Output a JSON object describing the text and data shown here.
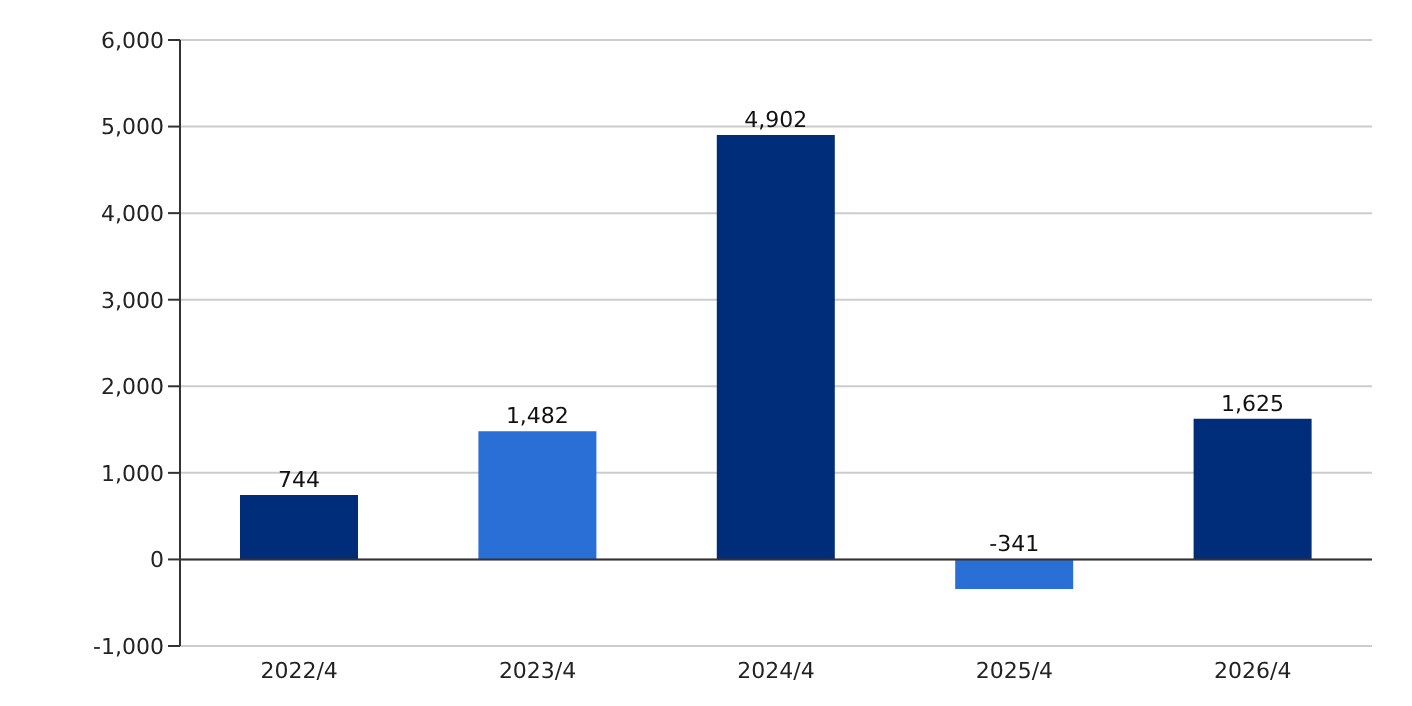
{
  "chart_data": {
    "type": "bar",
    "categories": [
      "2022/4",
      "2023/4",
      "2024/4",
      "2025/4",
      "2026/4"
    ],
    "values": [
      744,
      1482,
      4902,
      -341,
      1625
    ],
    "value_labels": [
      "744",
      "1,482",
      "4,902",
      "-341",
      "1,625"
    ],
    "colors": [
      "#002d7a",
      "#2a6fd6",
      "#002d7a",
      "#2a6fd6",
      "#002d7a"
    ],
    "ylim": [
      -1000,
      6000
    ],
    "yticks": [
      {
        "value": -1000,
        "label": "-1,000"
      },
      {
        "value": 0,
        "label": "0"
      },
      {
        "value": 1000,
        "label": "1,000"
      },
      {
        "value": 2000,
        "label": "2,000"
      },
      {
        "value": 3000,
        "label": "3,000"
      },
      {
        "value": 4000,
        "label": "4,000"
      },
      {
        "value": 5000,
        "label": "5,000"
      },
      {
        "value": 6000,
        "label": "6,000"
      }
    ],
    "grid": "y",
    "ref_lines": [
      {
        "axis": "y",
        "value": 0,
        "color": "#333333"
      }
    ]
  }
}
